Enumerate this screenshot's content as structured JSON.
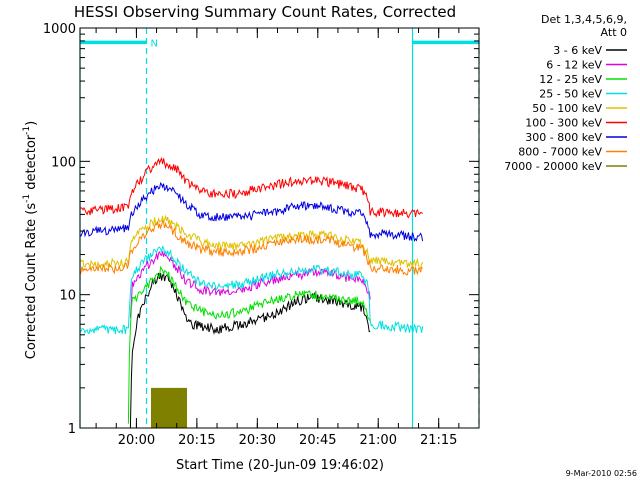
{
  "chart_data": {
    "type": "line",
    "title": "HESSI Observing Summary Count Rates, Corrected",
    "xlabel": "Start Time (20-Jun-09 19:46:02)",
    "ylabel_parts": {
      "main": "Corrected Count Rate (s",
      "sup1": "-1",
      "mid": " detector",
      "sup2": "-1",
      "end": ")"
    },
    "yscale": "log",
    "ylim": [
      1,
      1000
    ],
    "xlim_min": [
      0,
      99
    ],
    "x_tick_labels": [
      "20:00",
      "20:15",
      "20:30",
      "20:45",
      "21:00",
      "21:15"
    ],
    "x_ticks_min": [
      14,
      29,
      44,
      59,
      74,
      89
    ],
    "y_tick_labels": [
      "1",
      "10",
      "100",
      "1000"
    ],
    "y_ticks": [
      1,
      10,
      100,
      1000
    ],
    "legend_header": [
      "Det 1,3,4,5,6,9,",
      "Att 0"
    ],
    "legend_placement": "outside-right",
    "timestamp": "9-Mar-2010 02:56",
    "annotations": {
      "flag_label": "N",
      "flag_bars_min": [
        [
          0,
          16.5
        ],
        [
          82.5,
          99
        ]
      ],
      "flag_level": 780,
      "solid_vlines_min": [
        0,
        82.5
      ],
      "dashed_vlines_min": [
        16.5,
        99
      ],
      "marker_color": "#00e0e0"
    },
    "series": [
      {
        "name": "3 - 6 keV",
        "color": "#000000",
        "points": [
          [
            12.5,
            1
          ],
          [
            13,
            3.5
          ],
          [
            14,
            6
          ],
          [
            16,
            9
          ],
          [
            18,
            12
          ],
          [
            20,
            14
          ],
          [
            22,
            13
          ],
          [
            24,
            10
          ],
          [
            26,
            7
          ],
          [
            28,
            6
          ],
          [
            34,
            5.5
          ],
          [
            40,
            6
          ],
          [
            48,
            7
          ],
          [
            54,
            9
          ],
          [
            58,
            9.6
          ],
          [
            62,
            9
          ],
          [
            66,
            8.5
          ],
          [
            70,
            8
          ],
          [
            71.5,
            6
          ],
          [
            72,
            5
          ]
        ]
      },
      {
        "name": "6 - 12 keV",
        "color": "#e000e0",
        "points": [
          [
            12.5,
            6.5
          ],
          [
            13,
            12
          ],
          [
            16,
            16
          ],
          [
            18,
            18
          ],
          [
            20,
            20
          ],
          [
            22,
            19
          ],
          [
            24,
            16
          ],
          [
            26,
            13
          ],
          [
            30,
            11
          ],
          [
            34,
            10.5
          ],
          [
            40,
            11
          ],
          [
            48,
            13
          ],
          [
            54,
            14
          ],
          [
            58,
            15
          ],
          [
            62,
            14.5
          ],
          [
            66,
            13.5
          ],
          [
            70,
            13
          ],
          [
            71.5,
            10
          ],
          [
            72,
            9.5
          ]
        ]
      },
      {
        "name": "12 - 25 keV",
        "color": "#00e000",
        "points": [
          [
            12,
            1
          ],
          [
            12.5,
            6
          ],
          [
            13,
            9
          ],
          [
            16,
            11
          ],
          [
            18,
            13
          ],
          [
            20,
            15
          ],
          [
            22,
            14
          ],
          [
            24,
            11
          ],
          [
            26,
            9
          ],
          [
            30,
            7.5
          ],
          [
            34,
            7
          ],
          [
            40,
            7.5
          ],
          [
            48,
            9
          ],
          [
            54,
            10
          ],
          [
            58,
            10
          ],
          [
            62,
            9.5
          ],
          [
            66,
            9
          ],
          [
            70,
            9
          ],
          [
            71.5,
            7
          ],
          [
            72,
            6.5
          ]
        ]
      },
      {
        "name": "25 - 50 keV",
        "color": "#00e0e0",
        "points": [
          [
            0,
            5.5
          ],
          [
            12,
            5.5
          ],
          [
            12.5,
            11
          ],
          [
            13,
            14
          ],
          [
            16,
            18
          ],
          [
            18,
            20
          ],
          [
            20,
            22
          ],
          [
            22,
            21
          ],
          [
            24,
            18
          ],
          [
            26,
            15
          ],
          [
            30,
            12
          ],
          [
            34,
            11.5
          ],
          [
            40,
            12
          ],
          [
            48,
            14
          ],
          [
            54,
            15
          ],
          [
            58,
            15.5
          ],
          [
            62,
            15
          ],
          [
            66,
            14.5
          ],
          [
            70,
            14
          ],
          [
            71.5,
            12
          ],
          [
            72,
            6
          ],
          [
            85,
            5.5
          ]
        ]
      },
      {
        "name": "50 - 100 keV",
        "color": "#e0c000",
        "points": [
          [
            0,
            17
          ],
          [
            12,
            17.5
          ],
          [
            12.5,
            24
          ],
          [
            16,
            32
          ],
          [
            18,
            35
          ],
          [
            20,
            38
          ],
          [
            22,
            36
          ],
          [
            24,
            32
          ],
          [
            26,
            29
          ],
          [
            30,
            25
          ],
          [
            34,
            23
          ],
          [
            40,
            23
          ],
          [
            48,
            26
          ],
          [
            54,
            28
          ],
          [
            58,
            28
          ],
          [
            62,
            27.5
          ],
          [
            66,
            26
          ],
          [
            70,
            24
          ],
          [
            71.5,
            20
          ],
          [
            72,
            18
          ],
          [
            85,
            17
          ]
        ]
      },
      {
        "name": "100 - 300 keV",
        "color": "#ff0000",
        "points": [
          [
            0,
            42
          ],
          [
            12,
            45
          ],
          [
            12.5,
            55
          ],
          [
            16,
            80
          ],
          [
            18,
            92
          ],
          [
            20,
            100
          ],
          [
            22,
            96
          ],
          [
            24,
            88
          ],
          [
            26,
            72
          ],
          [
            30,
            60
          ],
          [
            34,
            56
          ],
          [
            40,
            58
          ],
          [
            48,
            66
          ],
          [
            54,
            72
          ],
          [
            58,
            72
          ],
          [
            62,
            70
          ],
          [
            66,
            66
          ],
          [
            70,
            62
          ],
          [
            71.5,
            50
          ],
          [
            72,
            42
          ],
          [
            85,
            40
          ]
        ]
      },
      {
        "name": "300 - 800 keV",
        "color": "#0000e0",
        "points": [
          [
            0,
            29
          ],
          [
            12,
            31
          ],
          [
            12.5,
            38
          ],
          [
            16,
            54
          ],
          [
            18,
            60
          ],
          [
            20,
            65
          ],
          [
            22,
            62
          ],
          [
            24,
            56
          ],
          [
            26,
            48
          ],
          [
            30,
            40
          ],
          [
            34,
            38
          ],
          [
            40,
            38
          ],
          [
            48,
            42
          ],
          [
            54,
            46
          ],
          [
            58,
            46
          ],
          [
            62,
            45
          ],
          [
            66,
            43
          ],
          [
            70,
            40
          ],
          [
            71.5,
            32
          ],
          [
            72,
            29
          ],
          [
            85,
            27
          ]
        ]
      },
      {
        "name": "800 - 7000 keV",
        "color": "#ff8000",
        "points": [
          [
            0,
            15
          ],
          [
            12,
            16
          ],
          [
            12.5,
            21
          ],
          [
            16,
            28
          ],
          [
            18,
            31
          ],
          [
            20,
            34
          ],
          [
            22,
            32
          ],
          [
            24,
            28
          ],
          [
            26,
            25
          ],
          [
            30,
            22
          ],
          [
            34,
            21
          ],
          [
            40,
            21
          ],
          [
            48,
            24
          ],
          [
            54,
            26
          ],
          [
            58,
            26
          ],
          [
            62,
            25.5
          ],
          [
            66,
            24
          ],
          [
            70,
            22
          ],
          [
            71.5,
            18
          ],
          [
            72,
            16
          ],
          [
            85,
            15
          ]
        ]
      },
      {
        "name": "7000 - 20000 keV",
        "color": "#808000",
        "points": [
          [
            17.5,
            1
          ],
          [
            17.5,
            2
          ],
          [
            26.5,
            2
          ],
          [
            26.5,
            1
          ]
        ]
      }
    ]
  }
}
